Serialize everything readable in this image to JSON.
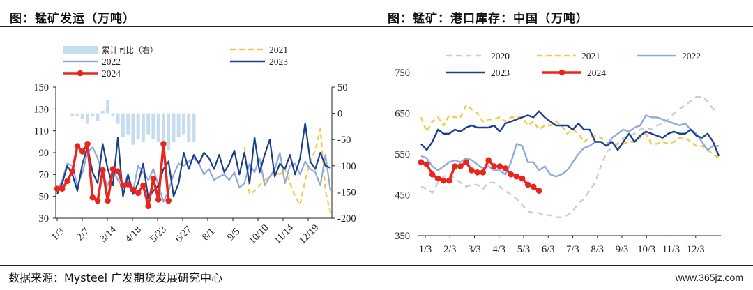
{
  "left_title": "图：锰矿发运（万吨）",
  "right_title": "图：锰矿：港口库存：中国（万吨）",
  "source": "数据来源：Mysteel 广发期货发展研究中心",
  "site": "www.365jz.com",
  "chart_data": [
    {
      "type": "line",
      "panel": "left",
      "title": "图：锰矿发运（万吨）",
      "ylim": [
        30,
        150
      ],
      "y_ticks": [
        30,
        50,
        70,
        90,
        110,
        130,
        150
      ],
      "y2lim": [
        -200,
        50
      ],
      "y2_ticks": [
        -200,
        -150,
        -100,
        -50,
        0,
        50
      ],
      "x_ticks": [
        "1/3",
        "2/7",
        "3/14",
        "4/18",
        "5/23",
        "6/27",
        "8/1",
        "9/5",
        "10/10",
        "11/14",
        "12/19"
      ],
      "legend": [
        "累计同比（右）",
        "2021",
        "2022",
        "2023",
        "2024"
      ],
      "series": [
        {
          "name": "累计同比（右）",
          "kind": "bar",
          "axis": "right",
          "color": "#c6dcef",
          "x": [
            3,
            4,
            5,
            6,
            7,
            8,
            9,
            10,
            11,
            12,
            13,
            14,
            15,
            16,
            17,
            18,
            19,
            20,
            21,
            22,
            23,
            24,
            25,
            26,
            27
          ],
          "values": [
            -5,
            -5,
            -10,
            -20,
            -5,
            -15,
            5,
            25,
            -5,
            -20,
            -45,
            -40,
            -60,
            -50,
            -55,
            -40,
            -50,
            -55,
            -60,
            -70,
            -55,
            -45,
            -40,
            -55,
            -55
          ]
        },
        {
          "name": "2021",
          "kind": "line",
          "axis": "left",
          "color": "#f5c842",
          "dash": "7,5",
          "x": [
            37,
            38,
            39,
            40,
            41,
            42,
            43,
            44,
            45,
            46,
            47,
            48,
            49,
            50,
            51,
            52,
            53,
            54
          ],
          "y": [
            95,
            52,
            55,
            60,
            65,
            68,
            72,
            70,
            75,
            62,
            50,
            42,
            65,
            82,
            92,
            112,
            55,
            35
          ]
        },
        {
          "name": "2022",
          "kind": "line",
          "axis": "left",
          "color": "#8faadc",
          "x": [
            0,
            1,
            2,
            3,
            4,
            5,
            6,
            7,
            8,
            9,
            10,
            11,
            12,
            13,
            14,
            15,
            16,
            17,
            18,
            19,
            20,
            21,
            22,
            23,
            24,
            25,
            26,
            27,
            28,
            29,
            30,
            31,
            32,
            33,
            34,
            35,
            36,
            37,
            38,
            39,
            40,
            41,
            42,
            43,
            44,
            45,
            46,
            47,
            48,
            49,
            50,
            51,
            52,
            53,
            54
          ],
          "y": [
            55,
            65,
            80,
            78,
            60,
            72,
            90,
            95,
            85,
            70,
            60,
            75,
            65,
            58,
            70,
            55,
            78,
            72,
            65,
            75,
            60,
            45,
            55,
            70,
            80,
            78,
            82,
            85,
            80,
            70,
            75,
            65,
            68,
            70,
            65,
            72,
            58,
            62,
            80,
            72,
            85,
            60,
            68,
            75,
            90,
            62,
            78,
            80,
            70,
            82,
            75,
            72,
            60,
            88,
            55
          ]
        },
        {
          "name": "2023",
          "kind": "line",
          "axis": "left",
          "color": "#1c3f8c",
          "x": [
            0,
            1,
            2,
            3,
            4,
            5,
            6,
            7,
            8,
            9,
            10,
            11,
            12,
            13,
            14,
            15,
            16,
            17,
            18,
            19,
            20,
            21,
            22,
            23,
            24,
            25,
            26,
            27,
            28,
            29,
            30,
            31,
            32,
            33,
            34,
            35,
            36,
            37,
            38,
            39,
            40,
            41,
            42,
            43,
            44,
            45,
            46,
            47,
            48,
            49,
            50,
            51,
            52,
            53,
            54
          ],
          "y": [
            52,
            62,
            78,
            70,
            55,
            80,
            95,
            72,
            62,
            98,
            75,
            60,
            104,
            50,
            70,
            52,
            62,
            80,
            48,
            55,
            60,
            75,
            82,
            50,
            62,
            90,
            75,
            88,
            80,
            90,
            85,
            75,
            88,
            72,
            80,
            92,
            70,
            90,
            62,
            104,
            72,
            88,
            102,
            68,
            80,
            75,
            88,
            70,
            85,
            117,
            82,
            75,
            90,
            78,
            76
          ]
        },
        {
          "name": "2024",
          "kind": "line",
          "axis": "left",
          "color": "#e8261e",
          "marker": "circle",
          "x": [
            0,
            1,
            2,
            3,
            4,
            5,
            6,
            7,
            8,
            9,
            10,
            11,
            12,
            13,
            14,
            15,
            16,
            17,
            18,
            19,
            20,
            21,
            22
          ],
          "y": [
            57,
            57,
            64,
            73,
            96,
            91,
            98,
            49,
            46,
            74,
            46,
            75,
            73,
            60,
            61,
            56,
            53,
            60,
            41,
            66,
            47,
            98,
            46
          ]
        }
      ]
    },
    {
      "type": "line",
      "panel": "right",
      "title": "图：锰矿：港口库存：中国（万吨）",
      "ylim": [
        350,
        750
      ],
      "y_ticks": [
        350,
        450,
        550,
        650,
        750
      ],
      "x_ticks": [
        "1/3",
        "2/3",
        "3/3",
        "4/3",
        "5/3",
        "6/3",
        "7/3",
        "8/3",
        "9/3",
        "10/3",
        "11/3",
        "12/3"
      ],
      "legend": [
        "2020",
        "2021",
        "2022",
        "2023",
        "2024"
      ],
      "series": [
        {
          "name": "2020",
          "kind": "line",
          "color": "#cccccc",
          "dash": "8,6",
          "x": [
            0,
            1,
            2,
            3,
            4,
            5,
            6,
            7,
            8,
            9,
            10,
            11,
            12,
            13,
            14,
            15,
            16,
            17,
            18,
            19,
            20,
            21,
            22,
            23,
            24,
            25,
            26,
            27,
            28,
            29,
            30,
            31,
            32,
            33,
            34,
            35,
            36,
            37,
            38,
            39,
            40,
            41,
            42,
            43,
            44,
            45,
            46,
            47,
            48,
            49,
            50,
            51,
            52,
            53
          ],
          "y": [
            470,
            465,
            455,
            480,
            495,
            500,
            490,
            480,
            470,
            475,
            475,
            465,
            480,
            480,
            470,
            460,
            450,
            440,
            425,
            410,
            405,
            405,
            400,
            400,
            395,
            395,
            400,
            410,
            430,
            440,
            460,
            480,
            520,
            555,
            565,
            575,
            590,
            595,
            600,
            610,
            615,
            610,
            620,
            625,
            635,
            650,
            660,
            670,
            680,
            690,
            690,
            680,
            660,
            660
          ]
        },
        {
          "name": "2021",
          "kind": "line",
          "color": "#f5c842",
          "dash": "7,5",
          "x": [
            0,
            1,
            2,
            3,
            4,
            5,
            6,
            7,
            8,
            9,
            10,
            11,
            12,
            13,
            14,
            15,
            16,
            17,
            18,
            19,
            20,
            21,
            22,
            23,
            24,
            25,
            26,
            27,
            28,
            29,
            30,
            31,
            32,
            33,
            34,
            35,
            36,
            37,
            38,
            39,
            40,
            41,
            42,
            43,
            44,
            45,
            46,
            47,
            48,
            49,
            50,
            51,
            52,
            53
          ],
          "y": [
            640,
            605,
            630,
            640,
            620,
            645,
            640,
            640,
            670,
            660,
            650,
            630,
            635,
            635,
            640,
            630,
            640,
            640,
            640,
            620,
            630,
            610,
            620,
            620,
            630,
            620,
            600,
            610,
            600,
            580,
            590,
            595,
            590,
            580,
            575,
            575,
            575,
            580,
            580,
            590,
            600,
            575,
            575,
            580,
            575,
            580,
            590,
            590,
            580,
            570,
            570,
            560,
            550,
            540
          ]
        },
        {
          "name": "2022",
          "kind": "line",
          "color": "#8faadc",
          "x": [
            0,
            1,
            2,
            3,
            4,
            5,
            6,
            7,
            8,
            9,
            10,
            11,
            12,
            13,
            14,
            15,
            16,
            17,
            18,
            19,
            20,
            21,
            22,
            23,
            24,
            25,
            26,
            27,
            28,
            29,
            30,
            31,
            32,
            33,
            34,
            35,
            36,
            37,
            38,
            39,
            40,
            41,
            42,
            43,
            44,
            45,
            46,
            47,
            48,
            49,
            50,
            51,
            52,
            53
          ],
          "y": [
            545,
            540,
            520,
            510,
            520,
            530,
            535,
            530,
            540,
            535,
            525,
            515,
            520,
            510,
            510,
            500,
            530,
            575,
            570,
            530,
            530,
            510,
            520,
            500,
            495,
            500,
            510,
            530,
            550,
            565,
            570,
            580,
            580,
            570,
            590,
            600,
            610,
            605,
            615,
            620,
            645,
            640,
            640,
            635,
            630,
            625,
            620,
            625,
            610,
            600,
            580,
            560,
            570,
            570
          ]
        },
        {
          "name": "2023",
          "kind": "line",
          "color": "#1c3f8c",
          "x": [
            0,
            1,
            2,
            3,
            4,
            5,
            6,
            7,
            8,
            9,
            10,
            11,
            12,
            13,
            14,
            15,
            16,
            17,
            18,
            19,
            20,
            21,
            22,
            23,
            24,
            25,
            26,
            27,
            28,
            29,
            30,
            31,
            32,
            33,
            34,
            35,
            36,
            37,
            38,
            39,
            40,
            41,
            42,
            43,
            44,
            45,
            46,
            47,
            48,
            49,
            50,
            51,
            52,
            53
          ],
          "y": [
            575,
            560,
            580,
            610,
            600,
            600,
            610,
            605,
            615,
            620,
            615,
            615,
            615,
            620,
            605,
            625,
            630,
            635,
            640,
            645,
            640,
            655,
            640,
            630,
            620,
            620,
            620,
            610,
            625,
            610,
            610,
            580,
            580,
            570,
            580,
            560,
            580,
            600,
            580,
            595,
            605,
            600,
            595,
            590,
            600,
            605,
            600,
            600,
            610,
            595,
            590,
            600,
            580,
            545
          ]
        },
        {
          "name": "2024",
          "kind": "line",
          "color": "#e8261e",
          "marker": "circle",
          "x": [
            0,
            1,
            2,
            3,
            4,
            5,
            6,
            7,
            8,
            9,
            10,
            11,
            12,
            13,
            14,
            15,
            16,
            17,
            18,
            19,
            20,
            21
          ],
          "y": [
            530,
            525,
            500,
            490,
            485,
            485,
            520,
            520,
            530,
            510,
            505,
            505,
            535,
            520,
            520,
            515,
            500,
            495,
            490,
            475,
            470,
            460
          ]
        }
      ]
    }
  ]
}
